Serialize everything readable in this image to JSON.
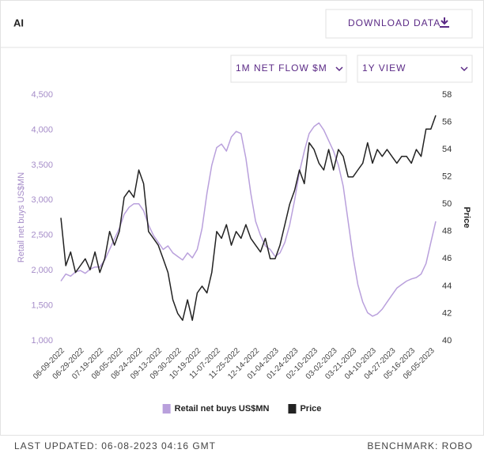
{
  "header": {
    "title": "AI",
    "download_button": "DOWNLOAD DATA"
  },
  "controls": {
    "metric": "1M NET FLOW $M",
    "view": "1Y VIEW"
  },
  "chart_data": {
    "type": "line",
    "y_label": "Retail net buys US$MN",
    "y2_label": "Price",
    "categories": [
      "06-09-2022",
      null,
      null,
      null,
      "06-29-2022",
      null,
      null,
      null,
      "07-19-2022",
      null,
      null,
      null,
      "08-05-2022",
      null,
      null,
      null,
      "08-24-2022",
      null,
      null,
      null,
      "09-13-2022",
      null,
      null,
      null,
      "09-30-2022",
      null,
      null,
      null,
      "10-19-2022",
      null,
      null,
      null,
      "11-07-2022",
      null,
      null,
      null,
      "11-25-2022",
      null,
      null,
      null,
      "12-14-2022",
      null,
      null,
      null,
      "01-04-2023",
      null,
      null,
      null,
      "01-24-2023",
      null,
      null,
      null,
      "02-10-2023",
      null,
      null,
      null,
      "03-02-2023",
      null,
      null,
      null,
      "03-21-2023",
      null,
      null,
      null,
      "04-10-2023",
      null,
      null,
      null,
      "04-27-2023",
      null,
      null,
      null,
      "05-16-2023",
      null,
      null,
      null,
      "06-05-2023",
      null
    ],
    "series": [
      {
        "name": "Retail net buys US$MN",
        "color": "#b9a0dc",
        "axis": "y",
        "values": [
          1850,
          1950,
          1920,
          1980,
          2000,
          1960,
          2020,
          2050,
          2050,
          2150,
          2300,
          2450,
          2600,
          2800,
          2900,
          2950,
          2950,
          2850,
          2650,
          2500,
          2400,
          2300,
          2350,
          2250,
          2200,
          2150,
          2250,
          2180,
          2300,
          2600,
          3100,
          3500,
          3750,
          3800,
          3700,
          3900,
          3980,
          3950,
          3600,
          3100,
          2700,
          2500,
          2350,
          2300,
          2200,
          2250,
          2400,
          2650,
          3000,
          3400,
          3700,
          3950,
          4050,
          4100,
          4000,
          3850,
          3700,
          3500,
          3200,
          2700,
          2200,
          1800,
          1550,
          1400,
          1350,
          1380,
          1450,
          1550,
          1650,
          1750,
          1800,
          1850,
          1880,
          1900,
          1950,
          2100,
          2400,
          2700
        ]
      },
      {
        "name": "Price",
        "color": "#222222",
        "axis": "y2",
        "values": [
          49,
          45.5,
          46.5,
          45,
          45.5,
          46,
          45.2,
          46.5,
          45,
          46,
          48,
          47,
          48,
          50.5,
          51,
          50.5,
          52.5,
          51.5,
          48,
          47.5,
          47,
          46,
          45,
          43,
          42,
          41.5,
          43,
          41.5,
          43.5,
          44,
          43.5,
          45,
          48,
          47.5,
          48.5,
          47,
          48,
          47.5,
          48.5,
          47.5,
          47,
          46.5,
          47.5,
          46,
          46,
          47,
          48.5,
          50,
          51,
          52.5,
          51.5,
          54.5,
          54,
          53,
          52.5,
          54,
          52.5,
          54,
          53.5,
          52,
          52,
          52.5,
          53,
          54.5,
          53,
          54,
          53.5,
          54,
          53.5,
          53,
          53.5,
          53.5,
          53,
          54,
          53.5,
          55.5,
          55.5,
          56.5
        ]
      }
    ],
    "ylim": [
      1000,
      4500
    ],
    "yticks": [
      {
        "value": 1000,
        "label": "1,000"
      },
      {
        "value": 1500,
        "label": "1,500"
      },
      {
        "value": 2000,
        "label": "2,000"
      },
      {
        "value": 2500,
        "label": "2,500"
      },
      {
        "value": 3000,
        "label": "3,000"
      },
      {
        "value": 3500,
        "label": "3,500"
      },
      {
        "value": 4000,
        "label": "4,000"
      },
      {
        "value": 4500,
        "label": "4,500"
      }
    ],
    "y2lim": [
      40,
      58
    ],
    "y2ticks": [
      40,
      42,
      44,
      46,
      48,
      50,
      52,
      54,
      56,
      58
    ],
    "grid": false,
    "legend": "bottom"
  },
  "footer": {
    "last_updated": "LAST UPDATED: 06-08-2023 04:16 GMT",
    "benchmark": "BENCHMARK: ROBO"
  }
}
